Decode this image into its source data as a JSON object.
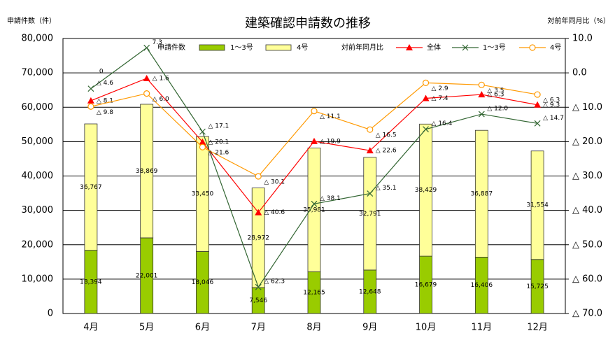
{
  "chart_data": {
    "type": "bar",
    "title": "建築確認申請数の推移",
    "y_label": "申請件数（件）",
    "y2_label": "対前年同月比（%）",
    "bar_legend_title": "申請件数",
    "line_legend_title": "対前年同月比",
    "annotations": [
      "0"
    ],
    "categories": [
      "4月",
      "5月",
      "6月",
      "7月",
      "8月",
      "9月",
      "10月",
      "11月",
      "12月"
    ],
    "stacked": true,
    "grid": true,
    "ylim": [
      0,
      80000
    ],
    "yticks": [
      0,
      {
        "value": 10000,
        "label": "10,000"
      },
      {
        "value": 20000,
        "label": "20,000"
      },
      {
        "value": 30000,
        "label": "30,000"
      },
      {
        "value": 40000,
        "label": "40,000"
      },
      {
        "value": 50000,
        "label": "50,000"
      },
      {
        "value": 60000,
        "label": "60,000"
      },
      {
        "value": 70000,
        "label": "70,000"
      },
      {
        "value": 80000,
        "label": "80,000"
      }
    ],
    "y2lim": [
      -70,
      10
    ],
    "y2ticks": [
      {
        "value": 10,
        "label": "10.0"
      },
      {
        "value": 0,
        "label": "0.0"
      },
      {
        "value": -10,
        "label": "△ 10.0"
      },
      {
        "value": -20,
        "label": "△ 20.0"
      },
      {
        "value": -30,
        "label": "△ 30.0"
      },
      {
        "value": -40,
        "label": "△ 40.0"
      },
      {
        "value": -50,
        "label": "△ 50.0"
      },
      {
        "value": -60,
        "label": "△ 60.0"
      },
      {
        "value": -70,
        "label": "△ 70.0"
      }
    ],
    "series": [
      {
        "name": "1～3号",
        "type": "bar",
        "color": "#99cc00",
        "values": [
          18394,
          22001,
          18046,
          7546,
          12165,
          12648,
          16679,
          16406,
          15725
        ],
        "value_labels": [
          "18,394",
          "22,001",
          "18,046",
          "7,546",
          "12,165",
          "12,648",
          "16,679",
          "16,406",
          "15,725"
        ]
      },
      {
        "name": "4号",
        "type": "bar",
        "color": "#ffff99",
        "values": [
          36767,
          38869,
          33450,
          28972,
          35981,
          32791,
          38429,
          36887,
          31554
        ],
        "value_labels": [
          "36,767",
          "38,869",
          "33,450",
          "28,972",
          "35,981",
          "32,791",
          "38,429",
          "36,887",
          "31,554"
        ]
      },
      {
        "name": "全体",
        "type": "line",
        "axis": "y2",
        "color": "#ff0000",
        "marker": "triangle",
        "values": [
          -8.1,
          -1.6,
          -20.1,
          -40.6,
          -19.9,
          -22.6,
          -7.4,
          -6.3,
          -9.3
        ],
        "value_labels": [
          "△ 8.1",
          "△ 1.6",
          "△ 20.1",
          "△ 40.6",
          "△ 19.9",
          "△ 22.6",
          "△ 7.4",
          "△ 6.3",
          "△ 9.3"
        ]
      },
      {
        "name": "1～3号",
        "type": "line",
        "axis": "y2",
        "color": "#336633",
        "marker": "x",
        "values": [
          -4.6,
          7.3,
          -17.1,
          -62.3,
          -38.1,
          -35.1,
          -16.4,
          -12.0,
          -14.7
        ],
        "value_labels": [
          "△ 4.6",
          "7.3",
          "△ 17.1",
          "△ 62.3",
          "△ 38.1",
          "△ 35.1",
          "△ 16.4",
          "△ 12.0",
          "△ 14.7"
        ]
      },
      {
        "name": "4号",
        "type": "line",
        "axis": "y2",
        "color": "#ff9900",
        "marker": "circle",
        "values": [
          -9.8,
          -6.0,
          -21.6,
          -30.1,
          -11.1,
          -16.5,
          -2.9,
          -3.5,
          -6.3
        ],
        "value_labels": [
          "△ 9.8",
          "△ 6.0",
          "△ 21.6",
          "△ 30.1",
          "△ 11.1",
          "△ 16.5",
          "△ 2.9",
          "△ 3.5",
          "△ 6.3"
        ]
      }
    ]
  }
}
